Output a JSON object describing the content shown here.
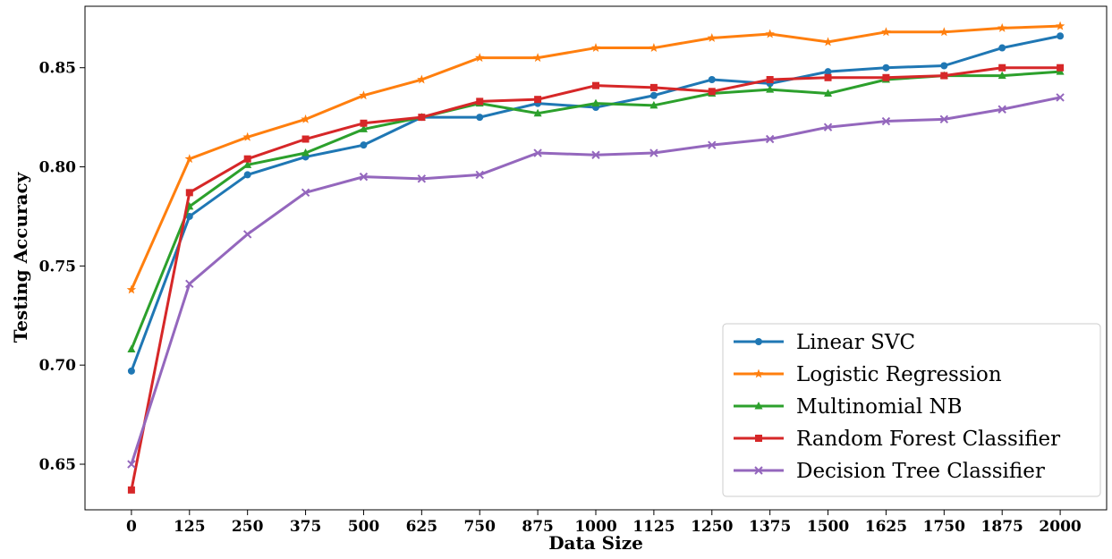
{
  "chart_data": {
    "type": "line",
    "title": "",
    "xlabel": "Data Size",
    "ylabel": "Testing Accuracy",
    "x": [
      0,
      125,
      250,
      375,
      500,
      625,
      750,
      875,
      1000,
      1125,
      1250,
      1375,
      1500,
      1625,
      1750,
      1875,
      2000
    ],
    "xticks": [
      "0",
      "125",
      "250",
      "375",
      "500",
      "625",
      "750",
      "875",
      "1000",
      "1125",
      "1250",
      "1375",
      "1500",
      "1625",
      "1750",
      "1875",
      "2000"
    ],
    "yticks": [
      "0.65",
      "0.70",
      "0.75",
      "0.80",
      "0.85"
    ],
    "ytick_values": [
      0.65,
      0.7,
      0.75,
      0.8,
      0.85
    ],
    "xlim": [
      -100,
      2100
    ],
    "ylim": [
      0.627,
      0.881
    ],
    "grid": false,
    "legend_position": "bottom-right",
    "series": [
      {
        "name": "Linear SVC",
        "color": "#1f77b4",
        "marker": "circle",
        "values": [
          0.697,
          0.775,
          0.796,
          0.805,
          0.811,
          0.825,
          0.825,
          0.832,
          0.83,
          0.836,
          0.844,
          0.842,
          0.848,
          0.85,
          0.851,
          0.86,
          0.866
        ]
      },
      {
        "name": "Logistic Regression",
        "color": "#ff7f0e",
        "marker": "star",
        "values": [
          0.738,
          0.804,
          0.815,
          0.824,
          0.836,
          0.844,
          0.855,
          0.855,
          0.86,
          0.86,
          0.865,
          0.867,
          0.863,
          0.868,
          0.868,
          0.87,
          0.871
        ]
      },
      {
        "name": "Multinomial NB",
        "color": "#2ca02c",
        "marker": "triangle",
        "values": [
          0.708,
          0.78,
          0.801,
          0.807,
          0.819,
          0.825,
          0.832,
          0.827,
          0.832,
          0.831,
          0.837,
          0.839,
          0.837,
          0.844,
          0.846,
          0.846,
          0.848
        ]
      },
      {
        "name": "Random Forest Classifier",
        "color": "#d62728",
        "marker": "square",
        "values": [
          0.637,
          0.787,
          0.804,
          0.814,
          0.822,
          0.825,
          0.833,
          0.834,
          0.841,
          0.84,
          0.838,
          0.844,
          0.845,
          0.845,
          0.846,
          0.85,
          0.85
        ]
      },
      {
        "name": "Decision Tree Classifier",
        "color": "#9467bd",
        "marker": "x",
        "values": [
          0.65,
          0.741,
          0.766,
          0.787,
          0.795,
          0.794,
          0.796,
          0.807,
          0.806,
          0.807,
          0.811,
          0.814,
          0.82,
          0.823,
          0.824,
          0.829,
          0.835
        ]
      }
    ]
  }
}
